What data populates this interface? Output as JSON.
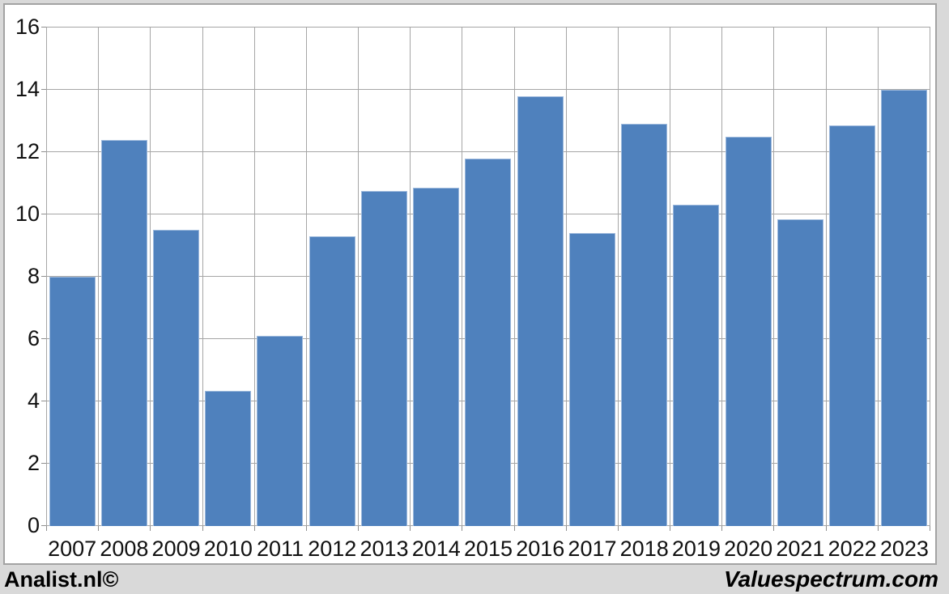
{
  "chart_data": {
    "type": "bar",
    "title": "",
    "xlabel": "",
    "ylabel": "",
    "categories": [
      "2007",
      "2008",
      "2009",
      "2010",
      "2011",
      "2012",
      "2013",
      "2014",
      "2015",
      "2016",
      "2017",
      "2018",
      "2019",
      "2020",
      "2021",
      "2022",
      "2023"
    ],
    "values": [
      8.0,
      12.4,
      9.5,
      4.35,
      6.1,
      9.3,
      10.75,
      10.85,
      11.8,
      13.8,
      9.4,
      12.9,
      10.3,
      12.5,
      9.85,
      12.85,
      14.0
    ],
    "ylim": [
      0,
      16
    ],
    "yticks": [
      0,
      2,
      4,
      6,
      8,
      10,
      12,
      14,
      16
    ],
    "grid": true,
    "legend": "none",
    "bar_color": "#4f81bd",
    "bar_border_color": "#9db9dc",
    "gridline_color": "#a6a6a6",
    "plot_background": "#ffffff",
    "frame_background": "#d9d9d9"
  },
  "footer": {
    "left": "Analist.nl©",
    "right": "Valuespectrum.com"
  }
}
